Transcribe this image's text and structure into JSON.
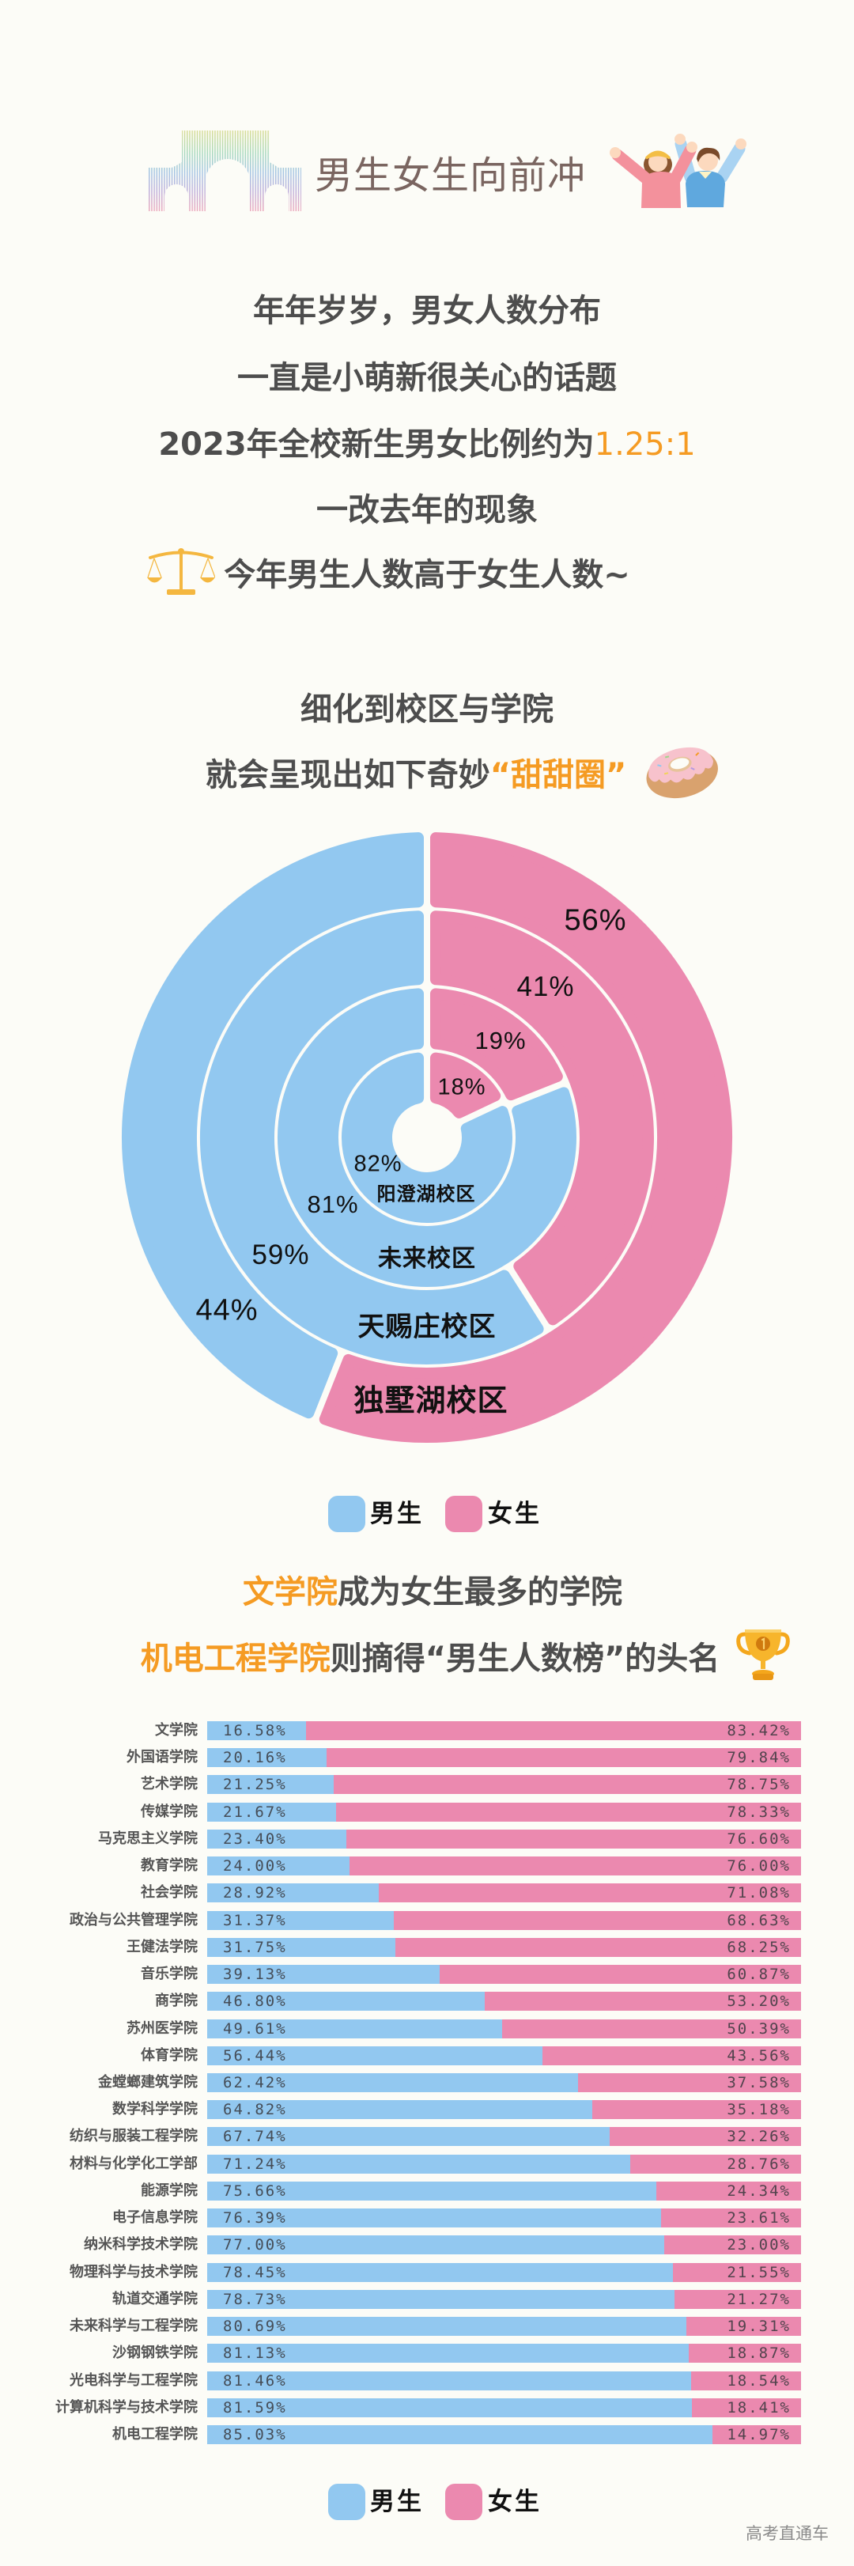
{
  "header": {
    "title": "男生女生向前冲"
  },
  "intro": {
    "line1": "年年岁岁，男女人数分布",
    "line2": "一直是小萌新很关心的话题",
    "line3_prefix": "2023年全校新生男女比例约为",
    "line3_value": "1.25:1",
    "line4": "一改去年的现象",
    "line5": "今年男生人数高于女生人数~"
  },
  "donut_section": {
    "line1": "细化到校区与学院",
    "line2_prefix": "就会呈现出如下奇妙",
    "line2_highlight": "“甜甜圈”"
  },
  "legend": {
    "male": "男生",
    "female": "女生"
  },
  "college_section": {
    "line1_highlight": "文学院",
    "line1_rest": "成为女生最多的学院",
    "line2_highlight": "机电工程学院",
    "line2_rest": "则摘得“男生人数榜”的头名"
  },
  "watermark": "高考直通车",
  "colors": {
    "male": "#92C8F0",
    "female": "#EB89AF",
    "accent": "#F59B23",
    "title": "#7A6560",
    "text": "#4D4D4D",
    "background": "#FCFCF7"
  },
  "icons": [
    "school-gate-illustration",
    "cheering-couple-illustration",
    "balance-scale-icon",
    "donut-icon",
    "trophy-icon"
  ],
  "chart_data": [
    {
      "type": "pie",
      "subtype": "nested-donut",
      "title": "",
      "categories": [
        "阳澄湖校区",
        "未来校区",
        "天赐庄校区",
        "独墅湖校区"
      ],
      "series": [
        {
          "name": "男生",
          "values": [
            82,
            81,
            59,
            44
          ]
        },
        {
          "name": "女生",
          "values": [
            18,
            19,
            41,
            56
          ]
        }
      ],
      "labels": {
        "male": [
          "82%",
          "81%",
          "59%",
          "44%"
        ],
        "female": [
          "18%",
          "19%",
          "41%",
          "56%"
        ]
      },
      "ring_order": "inner-to-outer",
      "legend": [
        "男生",
        "女生"
      ],
      "legend_position": "bottom"
    },
    {
      "type": "bar",
      "orientation": "horizontal",
      "stacked": true,
      "title": "",
      "xlabel": "",
      "ylabel": "",
      "xlim": [
        0,
        100
      ],
      "grid": false,
      "categories": [
        "文学院",
        "外国语学院",
        "艺术学院",
        "传媒学院",
        "马克思主义学院",
        "教育学院",
        "社会学院",
        "政治与公共管理学院",
        "王健法学院",
        "音乐学院",
        "商学院",
        "苏州医学院",
        "体育学院",
        "金螳螂建筑学院",
        "数学科学学院",
        "纺织与服装工程学院",
        "材料与化学化工学部",
        "能源学院",
        "电子信息学院",
        "纳米科学技术学院",
        "物理科学与技术学院",
        "轨道交通学院",
        "未来科学与工程学院",
        "沙钢钢铁学院",
        "光电科学与工程学院",
        "计算机科学与技术学院",
        "机电工程学院"
      ],
      "series": [
        {
          "name": "男生",
          "values": [
            16.58,
            20.16,
            21.25,
            21.67,
            23.4,
            24.0,
            28.92,
            31.37,
            31.75,
            39.13,
            46.8,
            49.61,
            56.44,
            62.42,
            64.82,
            67.74,
            71.24,
            75.66,
            76.39,
            77.0,
            78.45,
            78.73,
            80.69,
            81.13,
            81.46,
            81.59,
            85.03
          ]
        },
        {
          "name": "女生",
          "values": [
            83.42,
            79.84,
            78.75,
            78.33,
            76.6,
            76.0,
            71.08,
            68.63,
            68.25,
            60.87,
            53.2,
            50.39,
            43.56,
            37.58,
            35.18,
            32.26,
            28.76,
            24.34,
            23.61,
            23.0,
            21.55,
            21.27,
            19.31,
            18.87,
            18.54,
            18.41,
            14.97
          ]
        }
      ],
      "legend": [
        "男生",
        "女生"
      ],
      "legend_position": "bottom"
    }
  ]
}
